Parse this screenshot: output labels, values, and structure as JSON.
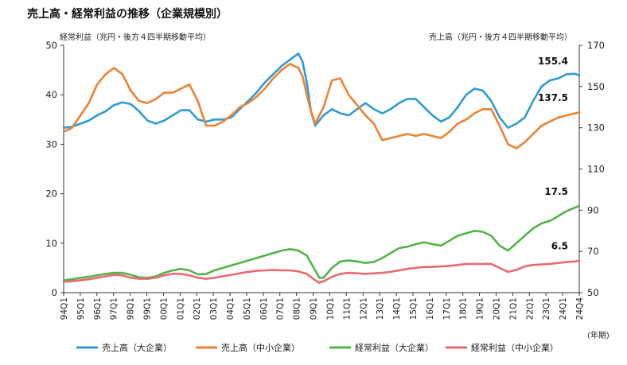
{
  "chart_data": {
    "type": "line",
    "title": "売上高・経常利益の推移（企業規模別）",
    "left_axis": {
      "label": "経常利益（兆円・後方４四半期移動平均）",
      "ylim": [
        0,
        50
      ],
      "ticks": [
        "0",
        "10",
        "20",
        "30",
        "40",
        "50"
      ]
    },
    "right_axis": {
      "label": "売上高（兆円・後方４四半期移動平均）",
      "ylim": [
        50,
        170
      ],
      "ticks": [
        "50",
        "70",
        "90",
        "110",
        "130",
        "150",
        "170"
      ]
    },
    "x_unit": "(年期)",
    "x_ticks": [
      "94Q1",
      "95Q1",
      "96Q1",
      "97Q1",
      "98Q1",
      "99Q1",
      "00Q1",
      "01Q1",
      "02Q1",
      "03Q1",
      "04Q1",
      "05Q1",
      "06Q1",
      "07Q1",
      "08Q1",
      "09Q1",
      "10Q1",
      "11Q1",
      "12Q1",
      "13Q1",
      "14Q1",
      "15Q1",
      "16Q1",
      "17Q1",
      "18Q1",
      "19Q1",
      "20Q1",
      "21Q1",
      "22Q1",
      "23Q1",
      "24Q1",
      "24Q4"
    ],
    "legend_position": "bottom",
    "series": [
      {
        "name": "売上高（大企業）",
        "axis": "right",
        "color": "#2e9bd6",
        "end_label": "155.4",
        "values": [
          [
            1994.0,
            130
          ],
          [
            1994.5,
            130.5
          ],
          [
            1995.0,
            132
          ],
          [
            1995.5,
            133.5
          ],
          [
            1996.0,
            136
          ],
          [
            1996.5,
            138
          ],
          [
            1997.0,
            141
          ],
          [
            1997.5,
            142.3
          ],
          [
            1998.0,
            141.5
          ],
          [
            1998.5,
            138
          ],
          [
            1999.0,
            133.5
          ],
          [
            1999.5,
            132
          ],
          [
            2000.0,
            133.5
          ],
          [
            2000.5,
            136
          ],
          [
            2001.0,
            138.5
          ],
          [
            2001.5,
            138.5
          ],
          [
            2002.0,
            134
          ],
          [
            2002.5,
            133
          ],
          [
            2003.0,
            134
          ],
          [
            2003.5,
            134
          ],
          [
            2004.0,
            135
          ],
          [
            2004.5,
            139
          ],
          [
            2005.0,
            143
          ],
          [
            2005.5,
            147
          ],
          [
            2006.0,
            152
          ],
          [
            2006.5,
            156
          ],
          [
            2007.0,
            160
          ],
          [
            2007.5,
            163
          ],
          [
            2008.0,
            166
          ],
          [
            2008.25,
            162
          ],
          [
            2008.5,
            152
          ],
          [
            2008.75,
            138
          ],
          [
            2009.0,
            131
          ],
          [
            2009.5,
            136
          ],
          [
            2010.0,
            139
          ],
          [
            2010.5,
            137
          ],
          [
            2011.0,
            136
          ],
          [
            2011.5,
            139
          ],
          [
            2012.0,
            142
          ],
          [
            2012.5,
            139
          ],
          [
            2013.0,
            137
          ],
          [
            2013.5,
            139
          ],
          [
            2014.0,
            142
          ],
          [
            2014.5,
            144
          ],
          [
            2015.0,
            144
          ],
          [
            2015.5,
            140
          ],
          [
            2016.0,
            136
          ],
          [
            2016.5,
            133
          ],
          [
            2017.0,
            135
          ],
          [
            2017.5,
            140
          ],
          [
            2018.0,
            146
          ],
          [
            2018.5,
            149
          ],
          [
            2019.0,
            148
          ],
          [
            2019.5,
            143
          ],
          [
            2020.0,
            135
          ],
          [
            2020.5,
            130
          ],
          [
            2021.0,
            132
          ],
          [
            2021.5,
            135
          ],
          [
            2022.0,
            143
          ],
          [
            2022.5,
            150
          ],
          [
            2023.0,
            153
          ],
          [
            2023.5,
            154
          ],
          [
            2024.0,
            156
          ],
          [
            2024.5,
            156.2
          ],
          [
            2024.75,
            155.4
          ]
        ]
      },
      {
        "name": "売上高（中小企業）",
        "axis": "right",
        "color": "#ee8133",
        "end_label": "137.5",
        "values": [
          [
            1994.0,
            128
          ],
          [
            1994.5,
            130
          ],
          [
            1995.0,
            136
          ],
          [
            1995.5,
            142
          ],
          [
            1996.0,
            151
          ],
          [
            1996.5,
            156
          ],
          [
            1997.0,
            159
          ],
          [
            1997.5,
            156
          ],
          [
            1998.0,
            148
          ],
          [
            1998.5,
            143
          ],
          [
            1999.0,
            142
          ],
          [
            1999.5,
            144
          ],
          [
            2000.0,
            147
          ],
          [
            2000.5,
            147
          ],
          [
            2001.0,
            149
          ],
          [
            2001.5,
            151
          ],
          [
            2002.0,
            143
          ],
          [
            2002.5,
            131
          ],
          [
            2003.0,
            131
          ],
          [
            2003.5,
            133
          ],
          [
            2004.0,
            136
          ],
          [
            2004.5,
            140
          ],
          [
            2005.0,
            142
          ],
          [
            2005.5,
            145
          ],
          [
            2006.0,
            149
          ],
          [
            2006.5,
            154
          ],
          [
            2007.0,
            158
          ],
          [
            2007.5,
            161
          ],
          [
            2008.0,
            159
          ],
          [
            2008.25,
            155
          ],
          [
            2008.5,
            146
          ],
          [
            2008.75,
            138
          ],
          [
            2009.0,
            132
          ],
          [
            2009.5,
            140
          ],
          [
            2010.0,
            153
          ],
          [
            2010.5,
            154
          ],
          [
            2011.0,
            146
          ],
          [
            2011.5,
            141
          ],
          [
            2012.0,
            136
          ],
          [
            2012.5,
            132
          ],
          [
            2013.0,
            124
          ],
          [
            2013.5,
            125
          ],
          [
            2014.0,
            126
          ],
          [
            2014.5,
            127
          ],
          [
            2015.0,
            126
          ],
          [
            2015.5,
            127
          ],
          [
            2016.0,
            126
          ],
          [
            2016.5,
            125
          ],
          [
            2017.0,
            128
          ],
          [
            2017.5,
            132
          ],
          [
            2018.0,
            134
          ],
          [
            2018.5,
            137
          ],
          [
            2019.0,
            139
          ],
          [
            2019.5,
            139
          ],
          [
            2020.0,
            131
          ],
          [
            2020.5,
            122
          ],
          [
            2021.0,
            120
          ],
          [
            2021.5,
            123
          ],
          [
            2022.0,
            127
          ],
          [
            2022.5,
            131
          ],
          [
            2023.0,
            133
          ],
          [
            2023.5,
            135
          ],
          [
            2024.0,
            136
          ],
          [
            2024.5,
            137
          ],
          [
            2024.75,
            137.5
          ]
        ]
      },
      {
        "name": "経常利益（大企業）",
        "axis": "left",
        "color": "#53b348",
        "end_label": "17.5",
        "values": [
          [
            1994.0,
            2.5
          ],
          [
            1994.5,
            2.7
          ],
          [
            1995.0,
            3.0
          ],
          [
            1995.5,
            3.2
          ],
          [
            1996.0,
            3.5
          ],
          [
            1996.5,
            3.8
          ],
          [
            1997.0,
            4.0
          ],
          [
            1997.5,
            4.0
          ],
          [
            1998.0,
            3.6
          ],
          [
            1998.5,
            3.1
          ],
          [
            1999.0,
            3.0
          ],
          [
            1999.5,
            3.3
          ],
          [
            2000.0,
            4.0
          ],
          [
            2000.5,
            4.5
          ],
          [
            2001.0,
            4.8
          ],
          [
            2001.5,
            4.5
          ],
          [
            2002.0,
            3.7
          ],
          [
            2002.5,
            3.8
          ],
          [
            2003.0,
            4.5
          ],
          [
            2003.5,
            5.0
          ],
          [
            2004.0,
            5.5
          ],
          [
            2004.5,
            6.0
          ],
          [
            2005.0,
            6.5
          ],
          [
            2005.5,
            7.0
          ],
          [
            2006.0,
            7.5
          ],
          [
            2006.5,
            8.0
          ],
          [
            2007.0,
            8.5
          ],
          [
            2007.5,
            8.8
          ],
          [
            2008.0,
            8.5
          ],
          [
            2008.5,
            7.5
          ],
          [
            2009.0,
            4.5
          ],
          [
            2009.25,
            3.0
          ],
          [
            2009.5,
            3.0
          ],
          [
            2010.0,
            5.0
          ],
          [
            2010.5,
            6.3
          ],
          [
            2011.0,
            6.5
          ],
          [
            2011.5,
            6.3
          ],
          [
            2012.0,
            6.0
          ],
          [
            2012.5,
            6.2
          ],
          [
            2013.0,
            7.0
          ],
          [
            2013.5,
            8.0
          ],
          [
            2014.0,
            9.0
          ],
          [
            2014.5,
            9.3
          ],
          [
            2015.0,
            9.8
          ],
          [
            2015.5,
            10.2
          ],
          [
            2016.0,
            9.8
          ],
          [
            2016.5,
            9.5
          ],
          [
            2017.0,
            10.5
          ],
          [
            2017.5,
            11.5
          ],
          [
            2018.0,
            12.0
          ],
          [
            2018.5,
            12.5
          ],
          [
            2019.0,
            12.3
          ],
          [
            2019.5,
            11.5
          ],
          [
            2020.0,
            9.5
          ],
          [
            2020.5,
            8.5
          ],
          [
            2021.0,
            10.0
          ],
          [
            2021.5,
            11.5
          ],
          [
            2022.0,
            13.0
          ],
          [
            2022.5,
            14.0
          ],
          [
            2023.0,
            14.5
          ],
          [
            2023.5,
            15.5
          ],
          [
            2024.0,
            16.5
          ],
          [
            2024.5,
            17.2
          ],
          [
            2024.75,
            17.5
          ]
        ]
      },
      {
        "name": "経常利益（中小企業）",
        "axis": "left",
        "color": "#e96a70",
        "end_label": "6.5",
        "values": [
          [
            1994.0,
            2.2
          ],
          [
            1994.5,
            2.3
          ],
          [
            1995.0,
            2.5
          ],
          [
            1995.5,
            2.7
          ],
          [
            1996.0,
            3.0
          ],
          [
            1996.5,
            3.3
          ],
          [
            1997.0,
            3.6
          ],
          [
            1997.5,
            3.5
          ],
          [
            1998.0,
            3.0
          ],
          [
            1998.5,
            2.8
          ],
          [
            1999.0,
            2.8
          ],
          [
            1999.5,
            3.0
          ],
          [
            2000.0,
            3.5
          ],
          [
            2000.5,
            3.8
          ],
          [
            2001.0,
            3.8
          ],
          [
            2001.5,
            3.5
          ],
          [
            2002.0,
            3.0
          ],
          [
            2002.5,
            2.8
          ],
          [
            2003.0,
            3.0
          ],
          [
            2003.5,
            3.3
          ],
          [
            2004.0,
            3.6
          ],
          [
            2004.5,
            3.9
          ],
          [
            2005.0,
            4.2
          ],
          [
            2005.5,
            4.4
          ],
          [
            2006.0,
            4.5
          ],
          [
            2006.5,
            4.6
          ],
          [
            2007.0,
            4.5
          ],
          [
            2007.5,
            4.5
          ],
          [
            2008.0,
            4.3
          ],
          [
            2008.5,
            3.8
          ],
          [
            2009.0,
            2.5
          ],
          [
            2009.25,
            2.0
          ],
          [
            2009.5,
            2.3
          ],
          [
            2010.0,
            3.2
          ],
          [
            2010.5,
            3.8
          ],
          [
            2011.0,
            4.0
          ],
          [
            2011.5,
            3.9
          ],
          [
            2012.0,
            3.8
          ],
          [
            2012.5,
            3.9
          ],
          [
            2013.0,
            4.0
          ],
          [
            2013.5,
            4.2
          ],
          [
            2014.0,
            4.5
          ],
          [
            2014.5,
            4.8
          ],
          [
            2015.0,
            5.0
          ],
          [
            2015.5,
            5.2
          ],
          [
            2016.0,
            5.2
          ],
          [
            2016.5,
            5.3
          ],
          [
            2017.0,
            5.4
          ],
          [
            2017.5,
            5.6
          ],
          [
            2018.0,
            5.8
          ],
          [
            2018.5,
            5.8
          ],
          [
            2019.0,
            5.8
          ],
          [
            2019.5,
            5.8
          ],
          [
            2020.0,
            5.0
          ],
          [
            2020.5,
            4.2
          ],
          [
            2021.0,
            4.6
          ],
          [
            2021.5,
            5.3
          ],
          [
            2022.0,
            5.6
          ],
          [
            2022.5,
            5.7
          ],
          [
            2023.0,
            5.8
          ],
          [
            2023.5,
            6.0
          ],
          [
            2024.0,
            6.2
          ],
          [
            2024.5,
            6.3
          ],
          [
            2024.75,
            6.5
          ]
        ]
      }
    ]
  }
}
